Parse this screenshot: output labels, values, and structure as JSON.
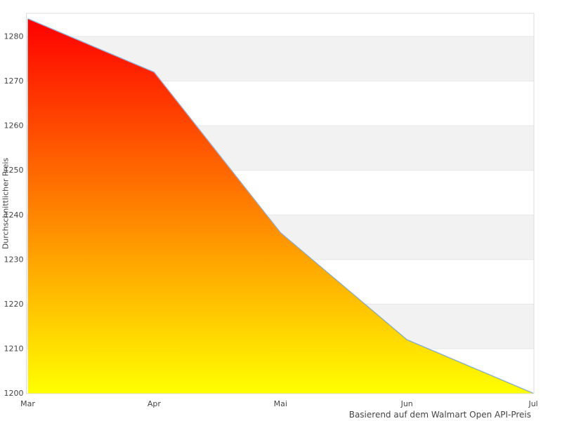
{
  "chart_data": {
    "type": "area",
    "categories": [
      "Mar",
      "Apr",
      "Mai",
      "Jun",
      "Jul"
    ],
    "values": [
      1284,
      1272,
      1236,
      1212,
      1200
    ],
    "title": "",
    "xlabel": "",
    "ylabel": "Durchschnittlicher Preis",
    "caption": "Basierend auf dem Walmart Open API-Preis",
    "ylim": [
      1200,
      1285.2
    ],
    "yticks": [
      1200,
      1210,
      1220,
      1230,
      1240,
      1250,
      1260,
      1270,
      1280
    ],
    "grid": "alternating-horizontal-bands",
    "legend": "none",
    "colors": {
      "area_gradient_top": "#ff0000",
      "area_gradient_bottom": "#ffff00",
      "line": "#85add8",
      "band_fill": "#f2f2f2",
      "gridline": "#e7e7e7",
      "plot_border": "#dcdcdc",
      "tick_label": "#444444"
    }
  }
}
